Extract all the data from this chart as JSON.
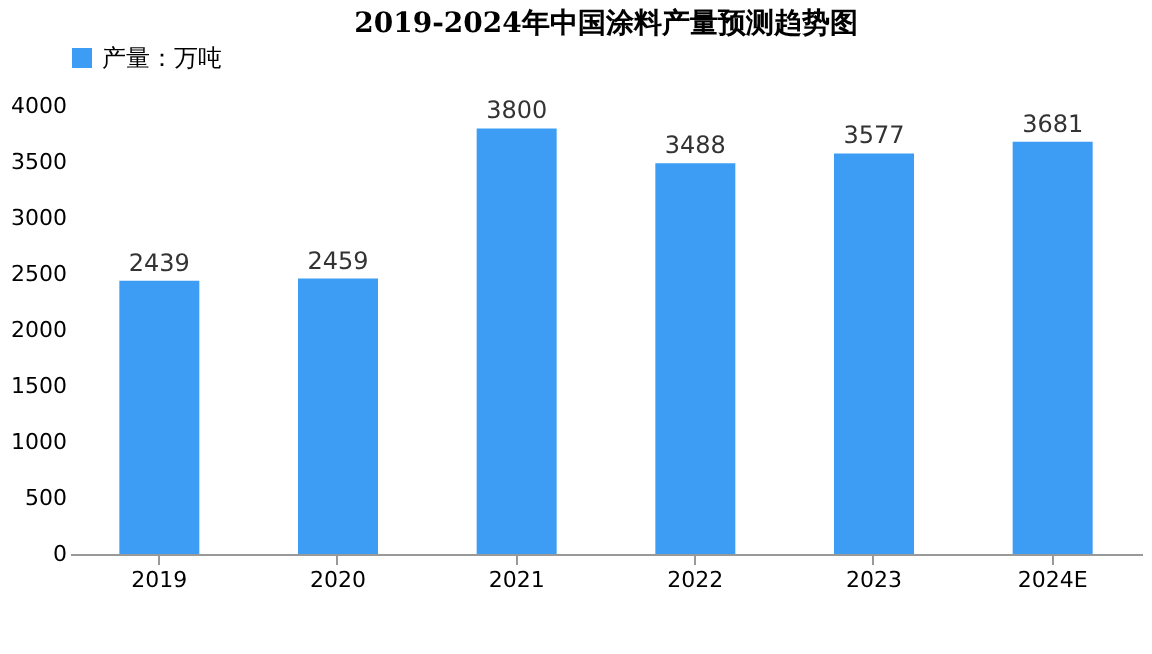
{
  "chart_data": {
    "type": "bar",
    "title": "2019-2024年中国涂料产量预测趋势图",
    "categories": [
      "2019",
      "2020",
      "2021",
      "2022",
      "2023",
      "2024E"
    ],
    "series": [
      {
        "name": "产量：万吨",
        "color": "#3d9df5",
        "values": [
          2439,
          2459,
          3800,
          3488,
          3577,
          3681
        ]
      }
    ],
    "ylim": [
      0,
      4000
    ],
    "yticks": [
      0,
      500,
      1000,
      1500,
      2000,
      2500,
      3000,
      3500,
      4000
    ],
    "grid": false,
    "legend": "top",
    "data_labels": true
  }
}
